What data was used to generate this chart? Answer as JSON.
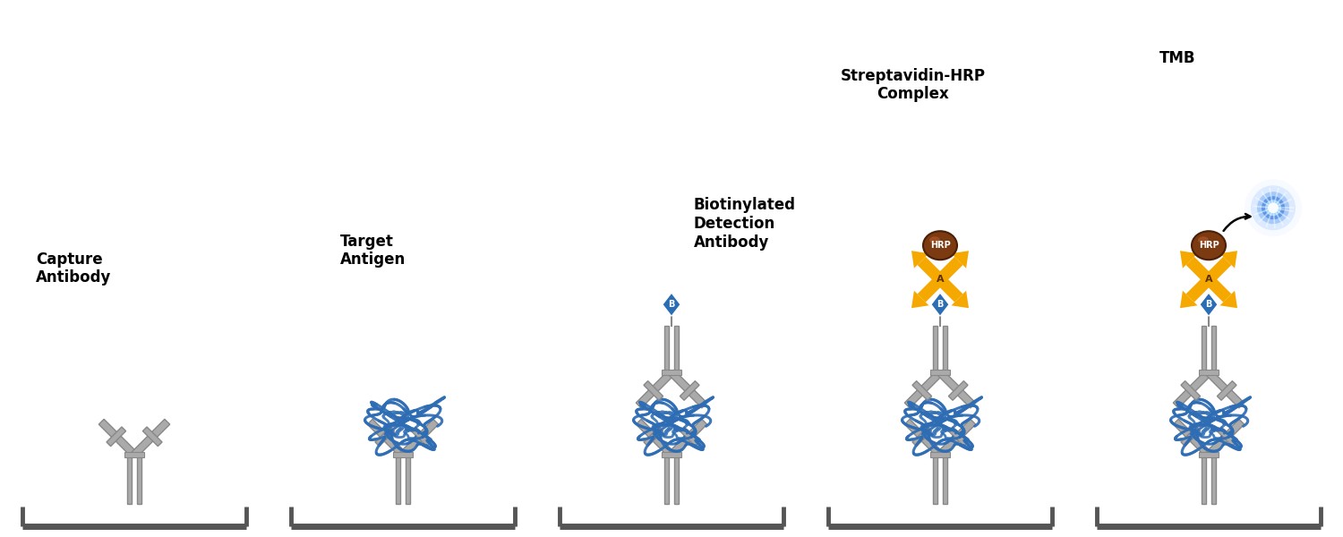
{
  "background_color": "#ffffff",
  "labels": [
    "Capture\nAntibody",
    "Target\nAntigen",
    "Biotinylated\nDetection\nAntibody",
    "Streptavidin-HRP\nComplex",
    "TMB"
  ],
  "antibody_color": "#aaaaaa",
  "antibody_outline": "#888888",
  "antigen_color": "#2e6db4",
  "streptavidin_color": "#f5a800",
  "hrp_color": "#7b3a10",
  "hrp_shine": "#a05020",
  "biotin_color": "#2a6db5",
  "plate_color": "#555555",
  "text_color": "#000000",
  "font_size": 12,
  "panel_centers": [
    1.5,
    4.5,
    7.5,
    10.5,
    13.5
  ]
}
